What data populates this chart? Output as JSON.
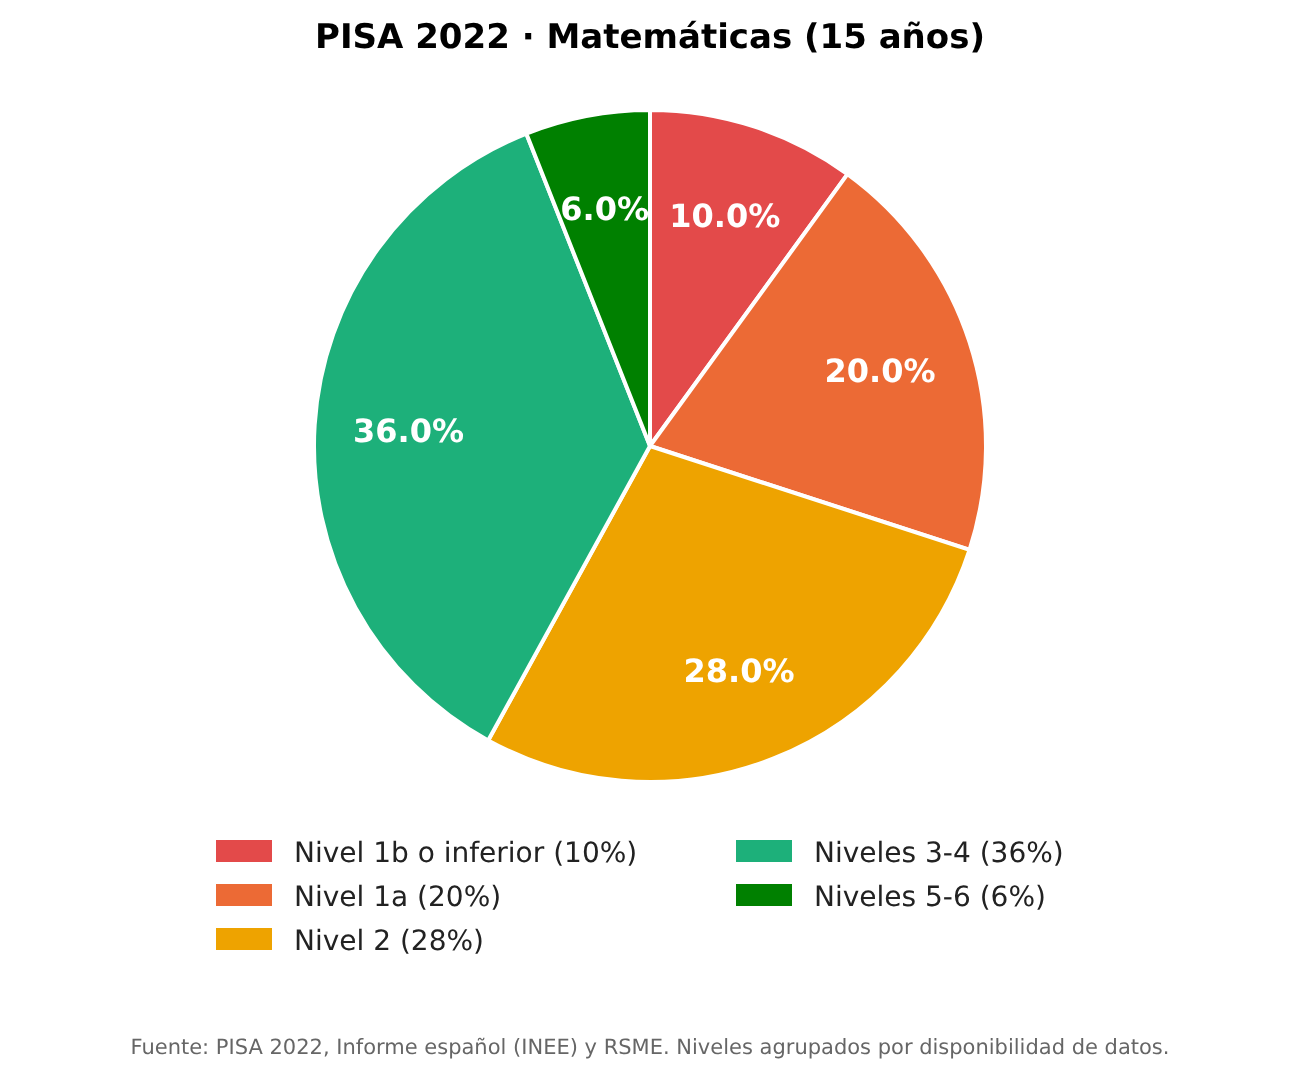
{
  "chart_data": {
    "type": "pie",
    "title": "PISA 2022 · Matemáticas (15 años)",
    "categories": [
      "Nivel 1b o inferior (10%)",
      "Nivel 1a (20%)",
      "Nivel 2 (28%)",
      "Niveles 3-4 (36%)",
      "Niveles 5-6 (6%)"
    ],
    "values": [
      10,
      20,
      28,
      36,
      6
    ],
    "colors": [
      "#e34a4a",
      "#ec6a35",
      "#eea300",
      "#1db07a",
      "#008000"
    ],
    "value_labels": [
      "10.0%",
      "20.0%",
      "28.0%",
      "36.0%",
      "6.0%"
    ],
    "legend": "bottom",
    "annotations": [
      "Fuente: PISA 2022, Informe español (INEE) y RSME. Niveles agrupados por disponibilidad de datos."
    ]
  }
}
